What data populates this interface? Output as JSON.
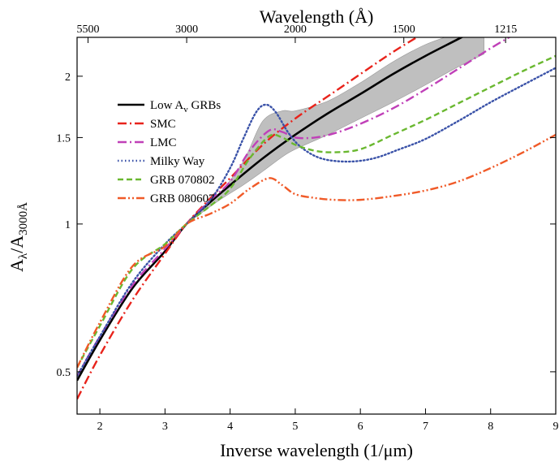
{
  "chart_data": {
    "type": "line",
    "title": "",
    "xlabel": "Inverse wavelength (1/μm)",
    "x2label": "Wavelength (Å)",
    "ylabel_main": "A",
    "ylabel_sub1": "λ",
    "ylabel_mid": "/A",
    "ylabel_sub2": "3000Å",
    "xlim": [
      1.65,
      9.0
    ],
    "ylim": [
      0.41,
      2.4
    ],
    "yscale": "log",
    "grid": false,
    "legend_position": "top-left",
    "xticks": [
      2,
      3,
      4,
      5,
      6,
      7,
      8,
      9
    ],
    "xtick_labels": [
      "2",
      "3",
      "4",
      "5",
      "6",
      "7",
      "8",
      "9"
    ],
    "yticks": [
      0.5,
      1,
      1.5,
      2
    ],
    "ytick_labels": [
      "0.5",
      "1",
      "1.5",
      "2"
    ],
    "top_ticks": [
      {
        "x": 1.818,
        "label": "5500"
      },
      {
        "x": 3.333,
        "label": "3000"
      },
      {
        "x": 5.0,
        "label": "2000"
      },
      {
        "x": 6.667,
        "label": "1500"
      },
      {
        "x": 8.23,
        "label": "1215"
      }
    ],
    "band": {
      "name": "Low Av GRBs uncertainty",
      "color": "#b4b4b4",
      "x": [
        3.33,
        3.8,
        4.2,
        4.5,
        4.8,
        5.0,
        5.5,
        6.0,
        6.5,
        7.0,
        7.5,
        7.9
      ],
      "upper": [
        1.0,
        1.14,
        1.34,
        1.62,
        1.7,
        1.7,
        1.78,
        1.94,
        2.14,
        2.32,
        2.45,
        2.55
      ],
      "lower": [
        1.0,
        1.11,
        1.2,
        1.28,
        1.37,
        1.42,
        1.52,
        1.64,
        1.77,
        1.92,
        2.09,
        2.22
      ]
    },
    "series": [
      {
        "name": "Low Av GRBs",
        "color": "#000000",
        "dash": "solid",
        "x": [
          1.65,
          2.0,
          2.5,
          3.0,
          3.33,
          3.7,
          4.0,
          4.5,
          5.0,
          5.5,
          6.0,
          6.5,
          7.0,
          7.5,
          7.8
        ],
        "y": [
          0.48,
          0.58,
          0.74,
          0.88,
          1.0,
          1.11,
          1.2,
          1.36,
          1.52,
          1.68,
          1.84,
          2.02,
          2.2,
          2.38,
          2.5
        ]
      },
      {
        "name": "SMC",
        "color": "#e8231b",
        "dash": "dashdot",
        "x": [
          1.65,
          2.0,
          2.5,
          3.0,
          3.33,
          3.7,
          4.0,
          4.5,
          5.0,
          5.5,
          6.0,
          6.5,
          7.0,
          7.2
        ],
        "y": [
          0.44,
          0.54,
          0.7,
          0.87,
          1.0,
          1.13,
          1.24,
          1.45,
          1.64,
          1.82,
          2.02,
          2.24,
          2.46,
          2.55
        ]
      },
      {
        "name": "LMC",
        "color": "#c040b8",
        "dash": "dashdot",
        "x": [
          1.65,
          2.0,
          2.5,
          3.0,
          3.33,
          3.7,
          4.0,
          4.3,
          4.6,
          4.8,
          5.0,
          5.3,
          5.6,
          6.0,
          6.5,
          7.0,
          7.5,
          8.0,
          8.4
        ],
        "y": [
          0.49,
          0.59,
          0.75,
          0.89,
          1.0,
          1.12,
          1.22,
          1.41,
          1.55,
          1.54,
          1.5,
          1.5,
          1.53,
          1.6,
          1.72,
          1.88,
          2.07,
          2.28,
          2.45
        ]
      },
      {
        "name": "Milky Way",
        "color": "#3a52a8",
        "dash": "dotted",
        "x": [
          1.65,
          2.0,
          2.5,
          3.0,
          3.33,
          3.7,
          4.0,
          4.2,
          4.4,
          4.55,
          4.7,
          4.9,
          5.1,
          5.4,
          5.8,
          6.2,
          6.6,
          7.0,
          7.5,
          8.0,
          8.5,
          9.0
        ],
        "y": [
          0.49,
          0.59,
          0.76,
          0.91,
          1.0,
          1.12,
          1.3,
          1.49,
          1.69,
          1.75,
          1.69,
          1.53,
          1.43,
          1.36,
          1.34,
          1.36,
          1.42,
          1.49,
          1.62,
          1.77,
          1.92,
          2.08
        ]
      },
      {
        "name": "GRB 070802",
        "color": "#6ab830",
        "dash": "dashed",
        "x": [
          1.65,
          2.0,
          2.5,
          3.0,
          3.33,
          3.7,
          4.0,
          4.3,
          4.6,
          4.8,
          5.0,
          5.3,
          5.6,
          6.0,
          6.5,
          7.0,
          7.5,
          8.0,
          8.5,
          9.0
        ],
        "y": [
          0.51,
          0.62,
          0.81,
          0.91,
          1.0,
          1.09,
          1.18,
          1.36,
          1.51,
          1.5,
          1.45,
          1.41,
          1.4,
          1.42,
          1.52,
          1.63,
          1.76,
          1.9,
          2.05,
          2.2
        ]
      },
      {
        "name": "GRB 080607",
        "color": "#f05a28",
        "dash": "dashdotdot",
        "x": [
          1.65,
          2.0,
          2.5,
          3.0,
          3.33,
          3.7,
          4.0,
          4.3,
          4.6,
          4.8,
          5.0,
          5.3,
          5.6,
          6.0,
          6.5,
          7.0,
          7.5,
          8.0,
          8.5,
          9.0
        ],
        "y": [
          0.51,
          0.63,
          0.82,
          0.9,
          1.0,
          1.05,
          1.1,
          1.18,
          1.24,
          1.2,
          1.15,
          1.13,
          1.12,
          1.12,
          1.14,
          1.17,
          1.22,
          1.3,
          1.4,
          1.52
        ]
      }
    ],
    "legend": [
      {
        "series": 0,
        "label": "Low A",
        "sub": "v",
        "after": " GRBs"
      },
      {
        "series": 1,
        "label": "SMC"
      },
      {
        "series": 2,
        "label": "LMC"
      },
      {
        "series": 3,
        "label": "Milky Way"
      },
      {
        "series": 4,
        "label": "GRB 070802"
      },
      {
        "series": 5,
        "label": "GRB 080607"
      }
    ]
  }
}
